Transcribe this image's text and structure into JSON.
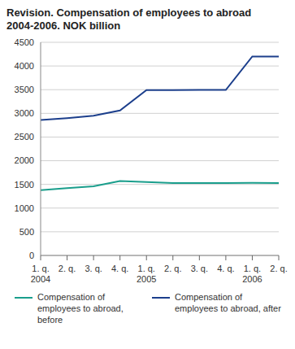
{
  "chart_data": {
    "type": "line",
    "title": "Revision. Compensation of employees to abroad\n2004-2006. NOK billion",
    "categories": [
      "1. q.\n2004",
      "2. q.",
      "3. q.",
      "4. q.",
      "1. q.\n2005",
      "2. q.",
      "3. q.",
      "4. q.",
      "1. q.\n2006",
      "2. q."
    ],
    "series": [
      {
        "name": "Compensation of employees to abroad, before",
        "color": "#1a9e8c",
        "values": [
          1380,
          1420,
          1460,
          1570,
          1550,
          1530,
          1530,
          1530,
          1535,
          1530
        ]
      },
      {
        "name": "Compensation of employees to abroad, after",
        "color": "#1c3f8c",
        "values": [
          2860,
          2900,
          2950,
          3060,
          3490,
          3490,
          3495,
          3495,
          4200,
          4200
        ]
      }
    ],
    "ylim": [
      0,
      4500
    ],
    "yticks": [
      0,
      500,
      1000,
      1500,
      2000,
      2500,
      3000,
      3500,
      4000,
      4500
    ],
    "grid": true,
    "legend": "bottom"
  }
}
